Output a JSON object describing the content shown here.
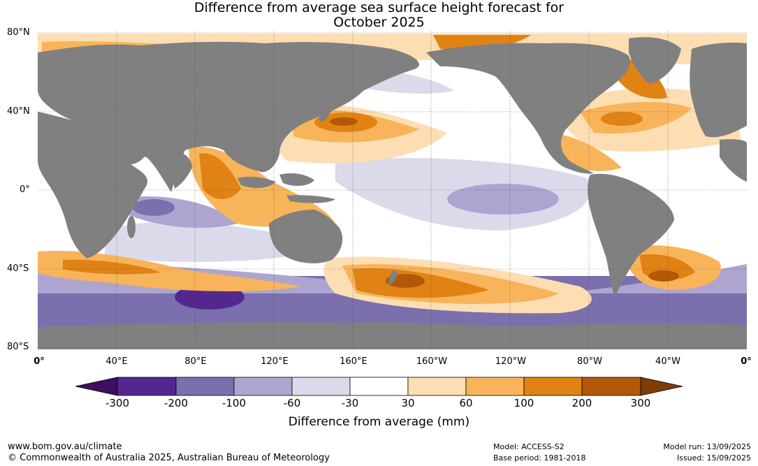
{
  "title": {
    "line1": "Difference from average sea surface height forecast for",
    "line2": "October 2025"
  },
  "map": {
    "latitude_labels": [
      "80°N",
      "40°N",
      "0°",
      "40°S",
      "80°S"
    ],
    "longitude_labels": [
      "0°",
      "40°E",
      "80°E",
      "120°E",
      "160°E",
      "160°W",
      "120°W",
      "80°W",
      "40°W",
      "0°"
    ],
    "land_color": "#808080",
    "ocean_neutral_color": "#ffffff"
  },
  "colorbar": {
    "title": "Difference from average (mm)",
    "tick_labels": [
      "-300",
      "-200",
      "-100",
      "-60",
      "-30",
      "30",
      "60",
      "100",
      "200",
      "300"
    ],
    "colors": [
      "#3d0f5c",
      "#54278f",
      "#7b6fae",
      "#ada5cf",
      "#dadaeb",
      "#ffffff",
      "#fddeb3",
      "#f8b45a",
      "#e08214",
      "#b35806",
      "#7f3b08"
    ]
  },
  "footer": {
    "website": "www.bom.gov.au/climate",
    "copyright": "© Commonwealth of Australia 2025, Australian Bureau of Meteorology",
    "model": "Model: ACCESS-S2",
    "base_period": "Base period: 1981-2018",
    "model_run": "Model run: 13/09/2025",
    "issued": "Issued: 15/09/2025"
  }
}
